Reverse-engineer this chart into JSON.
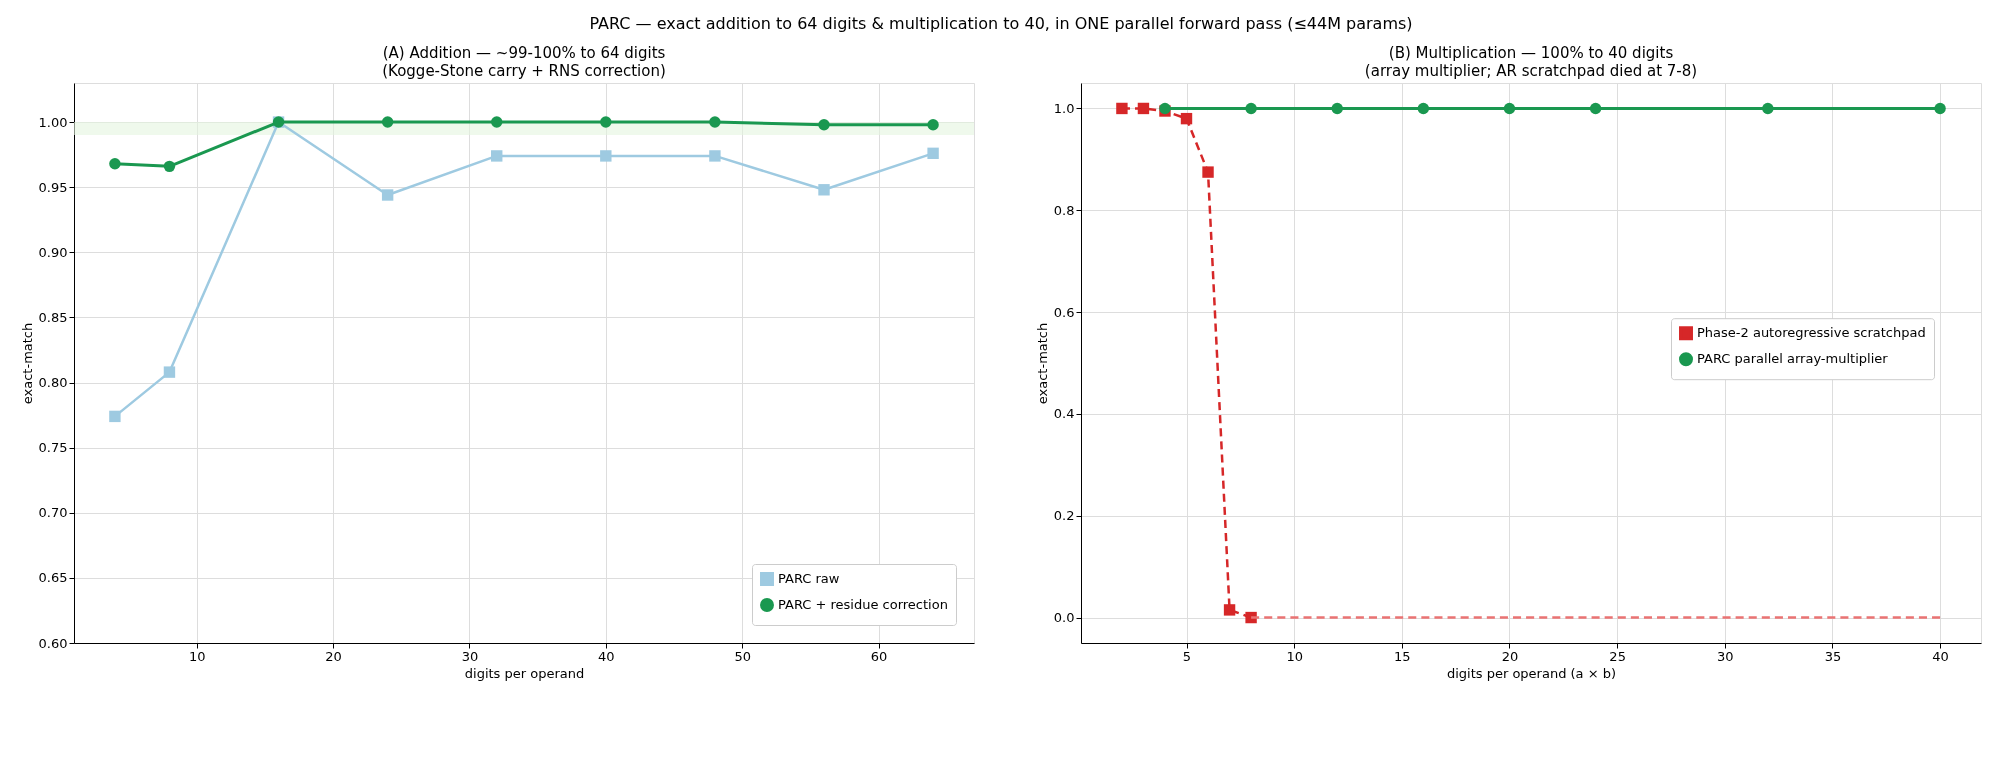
{
  "chart_data": [
    {
      "type": "line",
      "title": "(A) Addition — ~99-100% to 64 digits",
      "subtitle": "(Kogge-Stone carry + RNS correction)",
      "xlabel": "digits per operand",
      "ylabel": "exact-match",
      "annotations": [
        "PARC — exact addition to 64 digits & multiplication to 40, in ONE parallel forward pass (≤44M params)"
      ],
      "x": [
        4,
        8,
        16,
        24,
        32,
        40,
        48,
        56,
        64
      ],
      "series": [
        {
          "name": "PARC raw",
          "color": "#9ecae1",
          "marker": "square",
          "line_style": "solid",
          "values": [
            0.774,
            0.808,
            1.0,
            0.944,
            0.974,
            0.974,
            0.974,
            0.948,
            0.976
          ]
        },
        {
          "name": "PARC + residue correction",
          "color": "#1a9850",
          "marker": "circle",
          "line_style": "solid",
          "values": [
            0.968,
            0.966,
            1.0,
            1.0,
            1.0,
            1.0,
            1.0,
            0.998,
            0.998
          ]
        }
      ],
      "bands": [
        {
          "axis": "y",
          "from": 0.99,
          "to": 1.0,
          "color": "#e5f5e0"
        }
      ],
      "xlim": [
        1,
        67
      ],
      "ylim": [
        0.6,
        1.03
      ],
      "xticks": [
        10,
        20,
        30,
        40,
        50,
        60
      ],
      "yticks": [
        {
          "value": 0.6,
          "label": "0.60"
        },
        0.65,
        {
          "value": 0.7,
          "label": "0.70"
        },
        0.75,
        {
          "value": 0.8,
          "label": "0.80"
        },
        0.85,
        {
          "value": 0.9,
          "label": "0.90"
        },
        0.95,
        {
          "value": 1.0,
          "label": "1.00"
        }
      ],
      "grid": true,
      "legend": "bottom right"
    },
    {
      "type": "line",
      "title": "(B) Multiplication — 100% to 40 digits",
      "subtitle": "(array multiplier; AR scratchpad died at 7-8)",
      "xlabel": "digits per operand (a × b)",
      "ylabel": "exact-match",
      "series": [
        {
          "name": "Phase-2 autoregressive scratchpad",
          "color": "#d62728",
          "marker": "square",
          "line_style": "dashed",
          "x": [
            2,
            3,
            4,
            5,
            6,
            7,
            8
          ],
          "values": [
            1.0,
            1.0,
            0.995,
            0.98,
            0.875,
            0.015,
            0.0
          ]
        },
        {
          "color": "#ea7373",
          "marker": "none",
          "line_style": "dashed",
          "x": [
            8,
            40
          ],
          "values": [
            0.0,
            0.0
          ]
        },
        {
          "name": "PARC parallel array-multiplier",
          "color": "#1a9850",
          "marker": "circle",
          "line_style": "solid",
          "x": [
            4,
            8,
            12,
            16,
            20,
            24,
            32,
            40
          ],
          "values": [
            1.0,
            1.0,
            1.0,
            1.0,
            1.0,
            1.0,
            1.0,
            1.0
          ]
        }
      ],
      "xlim": [
        0.1,
        41.9
      ],
      "ylim": [
        -0.05,
        1.05
      ],
      "xticks": [
        5,
        10,
        15,
        20,
        25,
        30,
        35,
        40
      ],
      "yticks": [
        {
          "value": 0,
          "label": "0.0"
        },
        0.2,
        0.4,
        0.6,
        0.8,
        {
          "value": 1,
          "label": "1.0"
        }
      ],
      "grid": true,
      "legend": "right"
    }
  ]
}
